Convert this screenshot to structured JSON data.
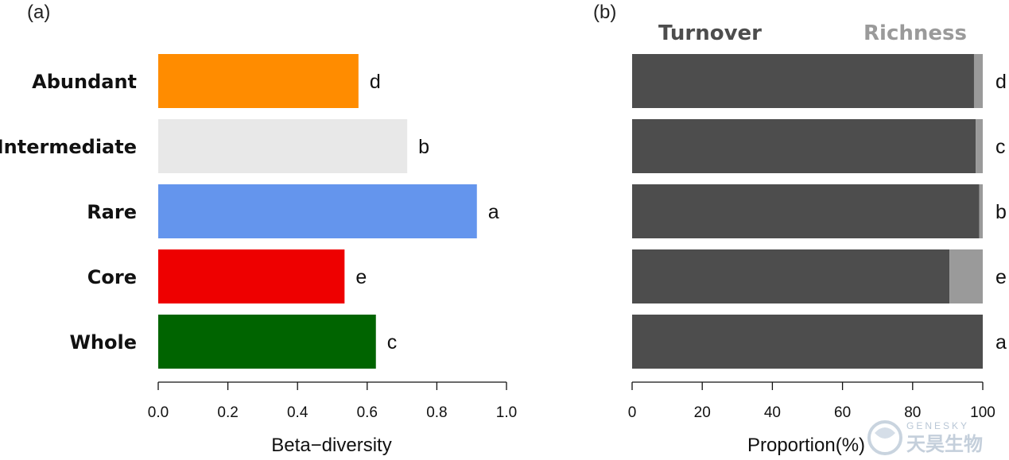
{
  "chart_data": [
    {
      "panel": "(a)",
      "type": "bar",
      "orientation": "horizontal",
      "categories": [
        "Abundant",
        "Intermediate",
        "Rare",
        "Core",
        "Whole"
      ],
      "values": [
        0.575,
        0.715,
        0.915,
        0.535,
        0.625
      ],
      "colors": [
        "#ff8c00",
        "#e8e8e8",
        "#6495ed",
        "#ee0000",
        "#006400"
      ],
      "significance": [
        "d",
        "b",
        "a",
        "e",
        "c"
      ],
      "xlabel": "Beta−diversity",
      "xlim": [
        0,
        1.0
      ],
      "xticks": [
        "0.0",
        "0.2",
        "0.4",
        "0.6",
        "0.8",
        "1.0"
      ],
      "grid": false
    },
    {
      "panel": "(b)",
      "type": "bar",
      "orientation": "horizontal",
      "stacked": true,
      "categories": [
        "Abundant",
        "Intermediate",
        "Rare",
        "Core",
        "Whole"
      ],
      "series": [
        {
          "name": "Turnover",
          "values": [
            97.5,
            98,
            99,
            90.5,
            100
          ],
          "color": "#4d4d4d"
        },
        {
          "name": "Richness",
          "values": [
            2.5,
            2,
            1,
            9.5,
            0
          ],
          "color": "#9a9a9a"
        }
      ],
      "significance": [
        "d",
        "c",
        "b",
        "e",
        "a"
      ],
      "xlabel": "Proportion(%)",
      "xlim": [
        0,
        100
      ],
      "xticks": [
        "0",
        "20",
        "40",
        "60",
        "80",
        "100"
      ],
      "legend_placement": "top",
      "grid": false
    }
  ],
  "watermark": {
    "latin": "GENESKY",
    "cjk": "天昊生物",
    "color": "#c4cfdb"
  }
}
